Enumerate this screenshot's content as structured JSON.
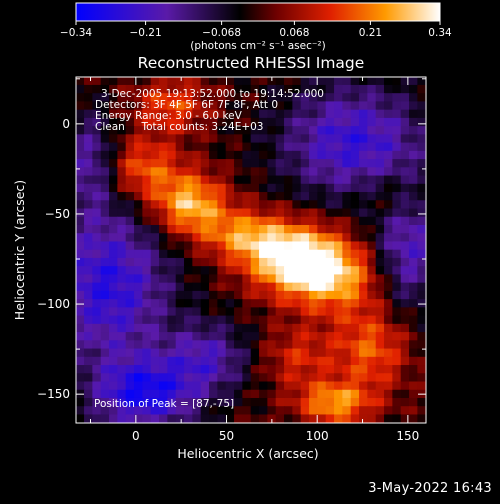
{
  "chart_data": {
    "type": "heatmap",
    "title": "Reconstructed RHESSI Image",
    "xlabel": "Heliocentric X (arcsec)",
    "ylabel": "Heliocentric Y (arcsec)",
    "xlim": [
      -33,
      160
    ],
    "ylim": [
      -166,
      26
    ],
    "xticks": [
      "0",
      "50",
      "100",
      "150"
    ],
    "xtick_values": [
      0,
      50,
      100,
      150
    ],
    "yticks": [
      "0",
      "−50",
      "−100",
      "−150"
    ],
    "ytick_values": [
      0,
      -50,
      -100,
      -150
    ],
    "colorbar": {
      "range": [
        -0.34,
        0.34
      ],
      "tick_labels": [
        "−0.34",
        "−0.21",
        "−0.068",
        "0.068",
        "0.21",
        "0.34"
      ],
      "tick_values": [
        -0.34,
        -0.21,
        -0.068,
        0.068,
        0.21,
        0.34
      ],
      "units_label": "(photons cm⁻² s⁻¹ asec⁻²)"
    },
    "annotations": [
      "3-Dec-2005 19:13:52.000 to 19:14:52.000",
      "Detectors: 3F 4F 5F 6F 7F 8F, Att 0",
      "Energy Range: 3.0 - 6.0 keV",
      "Clean     Total counts: 3.24E+03"
    ],
    "peak_label": "Position of Peak = [87,-75]",
    "peak": {
      "x": 87,
      "y": -75
    },
    "sources": [
      {
        "x": 30,
        "y": -45,
        "intensity": 0.28,
        "sx": 14,
        "sy": 12
      },
      {
        "x": 87,
        "y": -75,
        "intensity": 0.34,
        "sx": 18,
        "sy": 13
      },
      {
        "x": 110,
        "y": -85,
        "intensity": 0.24,
        "sx": 18,
        "sy": 14
      },
      {
        "x": 60,
        "y": -62,
        "intensity": 0.2,
        "sx": 16,
        "sy": 10
      },
      {
        "x": 5,
        "y": -25,
        "intensity": 0.18,
        "sx": 14,
        "sy": 12
      },
      {
        "x": 20,
        "y": 10,
        "intensity": 0.16,
        "sx": 14,
        "sy": 10
      },
      {
        "x": 130,
        "y": -125,
        "intensity": 0.18,
        "sx": 14,
        "sy": 16
      },
      {
        "x": 110,
        "y": -155,
        "intensity": 0.24,
        "sx": 14,
        "sy": 8
      },
      {
        "x": 90,
        "y": -130,
        "intensity": 0.12,
        "sx": 14,
        "sy": 12
      },
      {
        "x": 140,
        "y": -40,
        "intensity": 0.1,
        "sx": 12,
        "sy": 10
      }
    ],
    "background": [
      {
        "x": -15,
        "y": -90,
        "intensity": -0.26,
        "sx": 24,
        "sy": 30
      },
      {
        "x": 5,
        "y": -150,
        "intensity": -0.28,
        "sx": 20,
        "sy": 14
      },
      {
        "x": 120,
        "y": -10,
        "intensity": -0.24,
        "sx": 28,
        "sy": 22
      },
      {
        "x": 150,
        "y": -70,
        "intensity": -0.2,
        "sx": 14,
        "sy": 24
      },
      {
        "x": -25,
        "y": -20,
        "intensity": -0.16,
        "sx": 10,
        "sy": 20
      },
      {
        "x": 40,
        "y": -130,
        "intensity": -0.18,
        "sx": 16,
        "sy": 14
      }
    ]
  },
  "footer": {
    "date": "3-May-2022 16:43"
  }
}
